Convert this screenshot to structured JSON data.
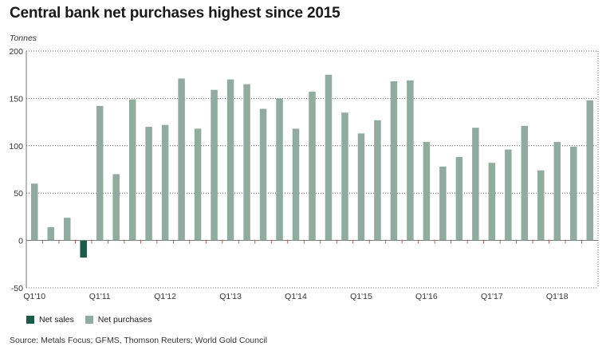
{
  "title": "Central bank net purchases highest since 2015",
  "unit_label": "Tonnes",
  "source": "Source: Metals Focus; GFMS, Thomson Reuters; World Gold Council",
  "colors": {
    "net_sales": "#1a5c45",
    "net_purchases": "#8fac9e"
  },
  "chart_data": {
    "type": "bar",
    "ylabel": "Tonnes",
    "ylim": [
      -50,
      200
    ],
    "yticks": [
      -50,
      0,
      50,
      100,
      150,
      200
    ],
    "grid": true,
    "legend_position": "bottom-left",
    "xtick_labels": [
      "Q1'10",
      "Q1'11",
      "Q1'12",
      "Q1'13",
      "Q1'14",
      "Q1'15",
      "Q1'16",
      "Q1'17",
      "Q1'18"
    ],
    "categories": [
      "Q1'10",
      "Q2'10",
      "Q3'10",
      "Q4'10",
      "Q1'11",
      "Q2'11",
      "Q3'11",
      "Q4'11",
      "Q1'12",
      "Q2'12",
      "Q3'12",
      "Q4'12",
      "Q1'13",
      "Q2'13",
      "Q3'13",
      "Q4'13",
      "Q1'14",
      "Q2'14",
      "Q3'14",
      "Q4'14",
      "Q1'15",
      "Q2'15",
      "Q3'15",
      "Q4'15",
      "Q1'16",
      "Q2'16",
      "Q3'16",
      "Q4'16",
      "Q1'17",
      "Q2'17",
      "Q3'17",
      "Q4'17",
      "Q1'18",
      "Q2'18",
      "Q3'18"
    ],
    "series": [
      {
        "name": "Net sales",
        "values": [
          null,
          null,
          null,
          -18,
          null,
          null,
          null,
          null,
          null,
          null,
          null,
          null,
          null,
          null,
          null,
          null,
          null,
          null,
          null,
          null,
          null,
          null,
          null,
          null,
          null,
          null,
          null,
          null,
          null,
          null,
          null,
          null,
          null,
          null,
          null
        ]
      },
      {
        "name": "Net purchases",
        "values": [
          60,
          14,
          24,
          null,
          142,
          70,
          149,
          120,
          122,
          171,
          118,
          159,
          170,
          165,
          139,
          150,
          118,
          157,
          175,
          135,
          113,
          127,
          168,
          169,
          104,
          78,
          88,
          119,
          82,
          96,
          121,
          74,
          104,
          99,
          148
        ]
      }
    ]
  }
}
